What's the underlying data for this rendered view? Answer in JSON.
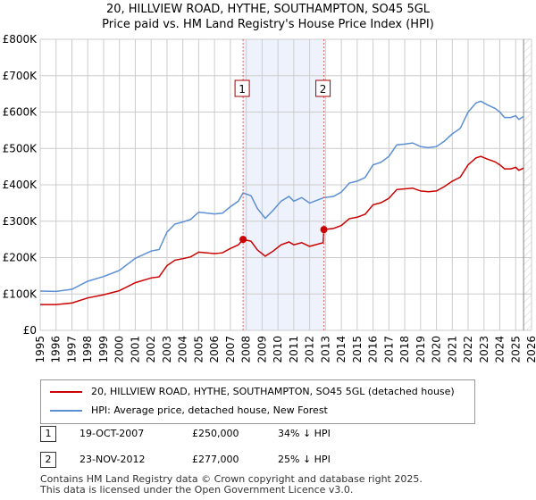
{
  "header": {
    "title": "20, HILLVIEW ROAD, HYTHE, SOUTHAMPTON, SO45 5GL",
    "subtitle": "Price paid vs. HM Land Registry's House Price Index (HPI)"
  },
  "colors": {
    "red": "#cc0000",
    "blue": "#5b8fd4",
    "shade": "#eef2fc"
  },
  "chart_data": {
    "type": "line",
    "title": "20, HILLVIEW ROAD, HYTHE, SOUTHAMPTON, SO45 5GL",
    "xlim": [
      1995,
      2026
    ],
    "ylim": [
      0,
      800000
    ],
    "xticks": [
      "1995",
      "1996",
      "1997",
      "1998",
      "1999",
      "2000",
      "2001",
      "2002",
      "2003",
      "2004",
      "2005",
      "2006",
      "2007",
      "2008",
      "2009",
      "2010",
      "2011",
      "2012",
      "2013",
      "2014",
      "2015",
      "2016",
      "2017",
      "2018",
      "2019",
      "2020",
      "2021",
      "2022",
      "2023",
      "2024",
      "2025",
      "2026"
    ],
    "yticks": [
      {
        "v": 0,
        "label": "£0"
      },
      {
        "v": 100000,
        "label": "£100K"
      },
      {
        "v": 200000,
        "label": "£200K"
      },
      {
        "v": 300000,
        "label": "£300K"
      },
      {
        "v": 400000,
        "label": "£400K"
      },
      {
        "v": 500000,
        "label": "£500K"
      },
      {
        "v": 600000,
        "label": "£600K"
      },
      {
        "v": 700000,
        "label": "£700K"
      },
      {
        "v": 800000,
        "label": "£800K"
      }
    ],
    "shaded_period": [
      2007.8,
      2012.9
    ],
    "hatched_after": 2025.5,
    "series": [
      {
        "name": "20, HILLVIEW ROAD, HYTHE, SOUTHAMPTON, SO45 5GL (detached house)",
        "color": "#cc0000",
        "x": [
          1995,
          1996,
          1997,
          1998,
          1999,
          2000,
          2001,
          2002,
          2002.5,
          2003,
          2003.5,
          2004,
          2004.5,
          2005,
          2006,
          2006.5,
          2007,
          2007.5,
          2007.8,
          2008.3,
          2008.7,
          2009.2,
          2009.7,
          2010.2,
          2010.7,
          2011,
          2011.5,
          2012,
          2012.85,
          2012.9,
          2013.5,
          2014,
          2014.5,
          2015,
          2015.5,
          2016,
          2016.5,
          2017,
          2017.5,
          2018,
          2018.5,
          2019,
          2019.5,
          2020,
          2020.5,
          2021,
          2021.5,
          2022,
          2022.5,
          2022.8,
          2023.2,
          2023.7,
          2024,
          2024.3,
          2024.7,
          2025,
          2025.2,
          2025.5
        ],
        "y": [
          71000,
          71000,
          75000,
          89000,
          98000,
          109000,
          131000,
          144000,
          147000,
          178000,
          193000,
          197000,
          202000,
          215000,
          211000,
          213000,
          225000,
          235000,
          250000,
          245000,
          221000,
          204000,
          218000,
          235000,
          243000,
          235000,
          241000,
          231000,
          241000,
          277000,
          280000,
          288000,
          307000,
          311000,
          319000,
          345000,
          351000,
          363000,
          387000,
          389000,
          391000,
          383000,
          381000,
          383000,
          395000,
          410000,
          421000,
          455000,
          474000,
          478000,
          471000,
          463000,
          455000,
          444000,
          444000,
          448000,
          440000,
          446000
        ]
      },
      {
        "name": "HPI: Average price, detached house, New Forest",
        "color": "#5b8fd4",
        "x": [
          1995,
          1996,
          1997,
          1998,
          1999,
          2000,
          2001,
          2002,
          2002.5,
          2003,
          2003.5,
          2004,
          2004.5,
          2005,
          2006,
          2006.5,
          2007,
          2007.5,
          2007.8,
          2008.3,
          2008.7,
          2009.2,
          2009.7,
          2010.2,
          2010.7,
          2011,
          2011.5,
          2012,
          2012.9,
          2013.5,
          2014,
          2014.5,
          2015,
          2015.5,
          2016,
          2016.5,
          2017,
          2017.5,
          2018,
          2018.5,
          2019,
          2019.5,
          2020,
          2020.5,
          2021,
          2021.5,
          2022,
          2022.5,
          2022.8,
          2023.2,
          2023.7,
          2024,
          2024.3,
          2024.7,
          2025,
          2025.2,
          2025.5
        ],
        "y": [
          108000,
          107000,
          113000,
          135000,
          148000,
          165000,
          198000,
          218000,
          222000,
          270000,
          292000,
          298000,
          305000,
          325000,
          320000,
          322000,
          340000,
          355000,
          378000,
          370000,
          335000,
          308000,
          330000,
          355000,
          368000,
          355000,
          365000,
          350000,
          365000,
          368000,
          380000,
          405000,
          410000,
          420000,
          455000,
          462000,
          478000,
          510000,
          512000,
          515000,
          505000,
          502000,
          505000,
          520000,
          540000,
          555000,
          600000,
          625000,
          630000,
          620000,
          610000,
          600000,
          585000,
          585000,
          590000,
          580000,
          588000
        ]
      }
    ],
    "sales": [
      {
        "label": "1",
        "x": 2007.8,
        "y": 250000
      },
      {
        "label": "2",
        "x": 2012.9,
        "y": 277000
      }
    ]
  },
  "legend": {
    "red": "20, HILLVIEW ROAD, HYTHE, SOUTHAMPTON, SO45 5GL (detached house)",
    "blue": "HPI: Average price, detached house, New Forest"
  },
  "transactions": [
    {
      "num": "1",
      "date": "19-OCT-2007",
      "price": "£250,000",
      "hpi": "34% ↓ HPI"
    },
    {
      "num": "2",
      "date": "23-NOV-2012",
      "price": "£277,000",
      "hpi": "25% ↓ HPI"
    }
  ],
  "footer": {
    "line1": "Contains HM Land Registry data © Crown copyright and database right 2025.",
    "line2": "This data is licensed under the Open Government Licence v3.0."
  }
}
